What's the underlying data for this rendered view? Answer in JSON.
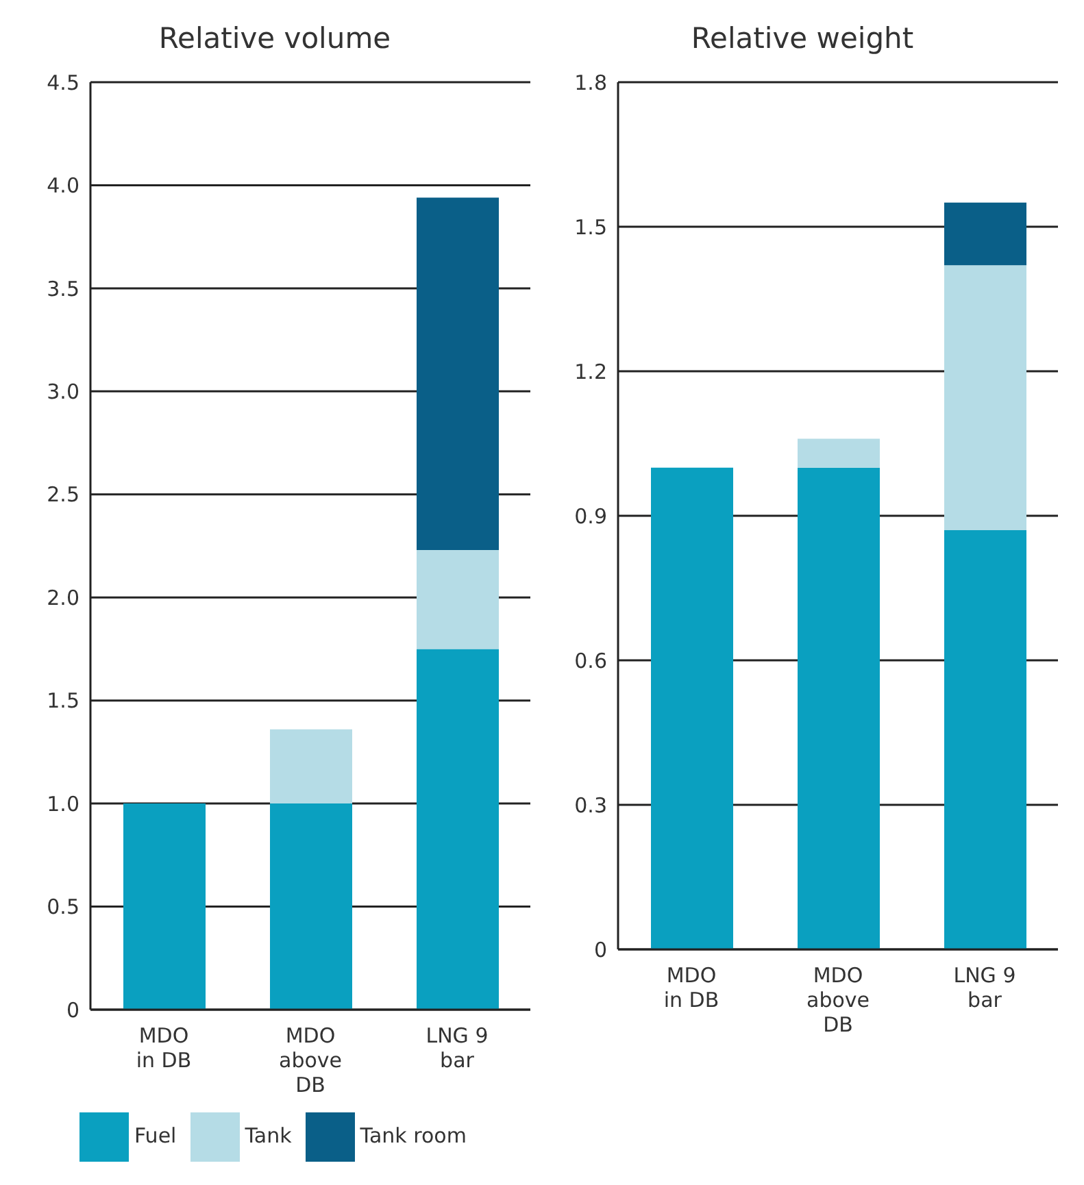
{
  "chart_data": [
    {
      "type": "bar",
      "title": "Relative volume",
      "categories": [
        "MDO in DB",
        "MDO above DB",
        "LNG 9 bar"
      ],
      "stacked": true,
      "series": [
        {
          "name": "Fuel",
          "color": "#0aa0c0",
          "values": [
            1.0,
            1.0,
            1.75
          ]
        },
        {
          "name": "Tank",
          "color": "#b5dce6",
          "values": [
            null,
            0.36,
            0.48
          ]
        },
        {
          "name": "Tank room",
          "color": "#0a5f88",
          "values": [
            null,
            null,
            1.71
          ]
        }
      ],
      "ylim": [
        0,
        4.5
      ],
      "yticks": [
        0,
        0.5,
        {
          "value": 1,
          "label": "1.0"
        },
        1.5,
        {
          "value": 2,
          "label": "2.0"
        },
        2.5,
        {
          "value": 3,
          "label": "3.0"
        },
        3.5,
        {
          "value": 4,
          "label": "4.0"
        },
        4.5
      ],
      "grid": "y",
      "legend": "bottom"
    },
    {
      "type": "bar",
      "title": "Relative weight",
      "categories": [
        "MDO in DB",
        "MDO above DB",
        "LNG 9 bar"
      ],
      "stacked": true,
      "series": [
        {
          "name": "Fuel",
          "color": "#0aa0c0",
          "values": [
            1.0,
            1.0,
            0.87
          ]
        },
        {
          "name": "Tank",
          "color": "#b5dce6",
          "values": [
            null,
            0.06,
            0.55
          ]
        },
        {
          "name": "Tank room",
          "color": "#0a5f88",
          "values": [
            null,
            null,
            0.13
          ]
        }
      ],
      "ylim": [
        0,
        1.8
      ],
      "yticks": [
        0,
        0.3,
        0.6,
        0.9,
        1.2,
        1.5,
        1.8
      ],
      "grid": "y",
      "legend": false
    }
  ]
}
